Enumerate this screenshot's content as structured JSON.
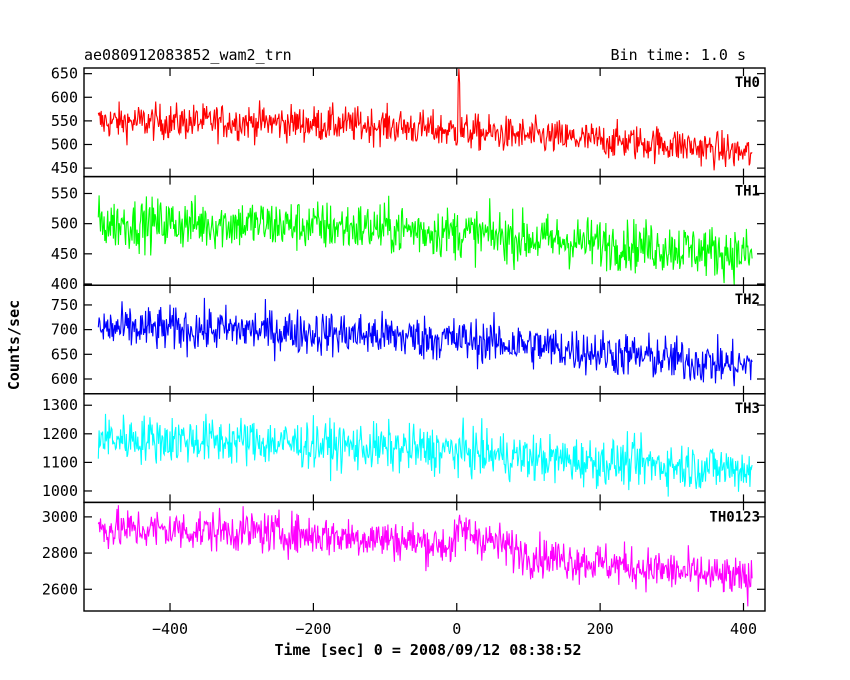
{
  "header": {
    "title": "ae080912083852_wam2_trn",
    "bin_time": "Bin time: 1.0 s"
  },
  "chart_data": {
    "type": "line",
    "title": "ae080912083852_wam2_trn",
    "subtitle": "Bin time: 1.0 s",
    "xlabel": "Time [sec] 0 = 2008/09/12 08:38:52",
    "ylabel": "Counts/sec",
    "xlim": [
      -520,
      430
    ],
    "x_ticks": [
      -400,
      -200,
      0,
      200,
      400
    ],
    "x_tick_labels": [
      "−400",
      "−200",
      "0",
      "200",
      "400"
    ],
    "x_range": [
      -500,
      412
    ],
    "grid": false,
    "panels": [
      {
        "name": "TH0",
        "color": "#ff0000",
        "ylim": [
          432,
          662
        ],
        "yticks": [
          450,
          500,
          550,
          600,
          650
        ],
        "trend": [
          [
            -500,
            548
          ],
          [
            -300,
            548
          ],
          [
            -100,
            540
          ],
          [
            0,
            528
          ],
          [
            100,
            518
          ],
          [
            300,
            500
          ],
          [
            412,
            480
          ]
        ],
        "noise": 25,
        "peak": {
          "x": 3,
          "y": 660
        }
      },
      {
        "name": "TH1",
        "color": "#00ff00",
        "ylim": [
          398,
          578
        ],
        "yticks": [
          400,
          450,
          500,
          550
        ],
        "trend": [
          [
            -500,
            500
          ],
          [
            -300,
            500
          ],
          [
            -100,
            492
          ],
          [
            0,
            485
          ],
          [
            100,
            475
          ],
          [
            300,
            460
          ],
          [
            412,
            448
          ]
        ],
        "noise": 28
      },
      {
        "name": "TH2",
        "color": "#0000ff",
        "ylim": [
          570,
          790
        ],
        "yticks": [
          600,
          650,
          700,
          750
        ],
        "trend": [
          [
            -500,
            702
          ],
          [
            -300,
            700
          ],
          [
            -100,
            688
          ],
          [
            0,
            680
          ],
          [
            100,
            668
          ],
          [
            300,
            640
          ],
          [
            412,
            625
          ]
        ],
        "noise": 30
      },
      {
        "name": "TH3",
        "color": "#00ffff",
        "ylim": [
          960,
          1340
        ],
        "yticks": [
          1000,
          1100,
          1200,
          1300
        ],
        "trend": [
          [
            -500,
            1185
          ],
          [
            -300,
            1175
          ],
          [
            -100,
            1150
          ],
          [
            0,
            1140
          ],
          [
            100,
            1115
          ],
          [
            300,
            1090
          ],
          [
            412,
            1075
          ]
        ],
        "noise": 55
      },
      {
        "name": "TH0123",
        "color": "#ff00ff",
        "ylim": [
          2480,
          3080
        ],
        "yticks": [
          2600,
          2800,
          3000
        ],
        "trend": [
          [
            -500,
            2935
          ],
          [
            -300,
            2920
          ],
          [
            -100,
            2880
          ],
          [
            -5,
            2840
          ],
          [
            5,
            2930
          ],
          [
            100,
            2790
          ],
          [
            300,
            2700
          ],
          [
            412,
            2650
          ]
        ],
        "noise": 75
      }
    ]
  }
}
